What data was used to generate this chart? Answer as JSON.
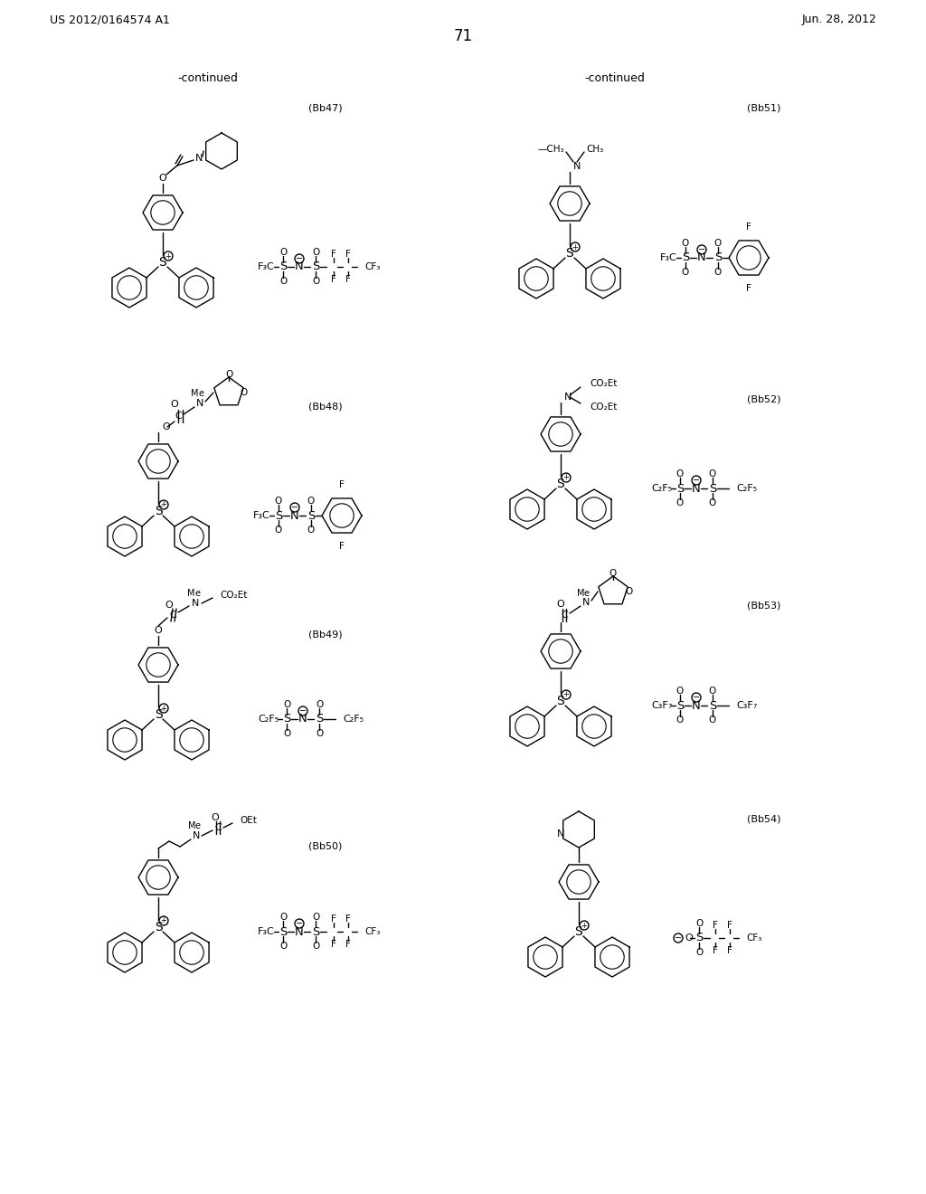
{
  "page_header_left": "US 2012/0164574 A1",
  "page_header_right": "Jun. 28, 2012",
  "page_number": "71",
  "background_color": "#ffffff",
  "figsize": [
    10.24,
    13.2
  ],
  "dpi": 100
}
